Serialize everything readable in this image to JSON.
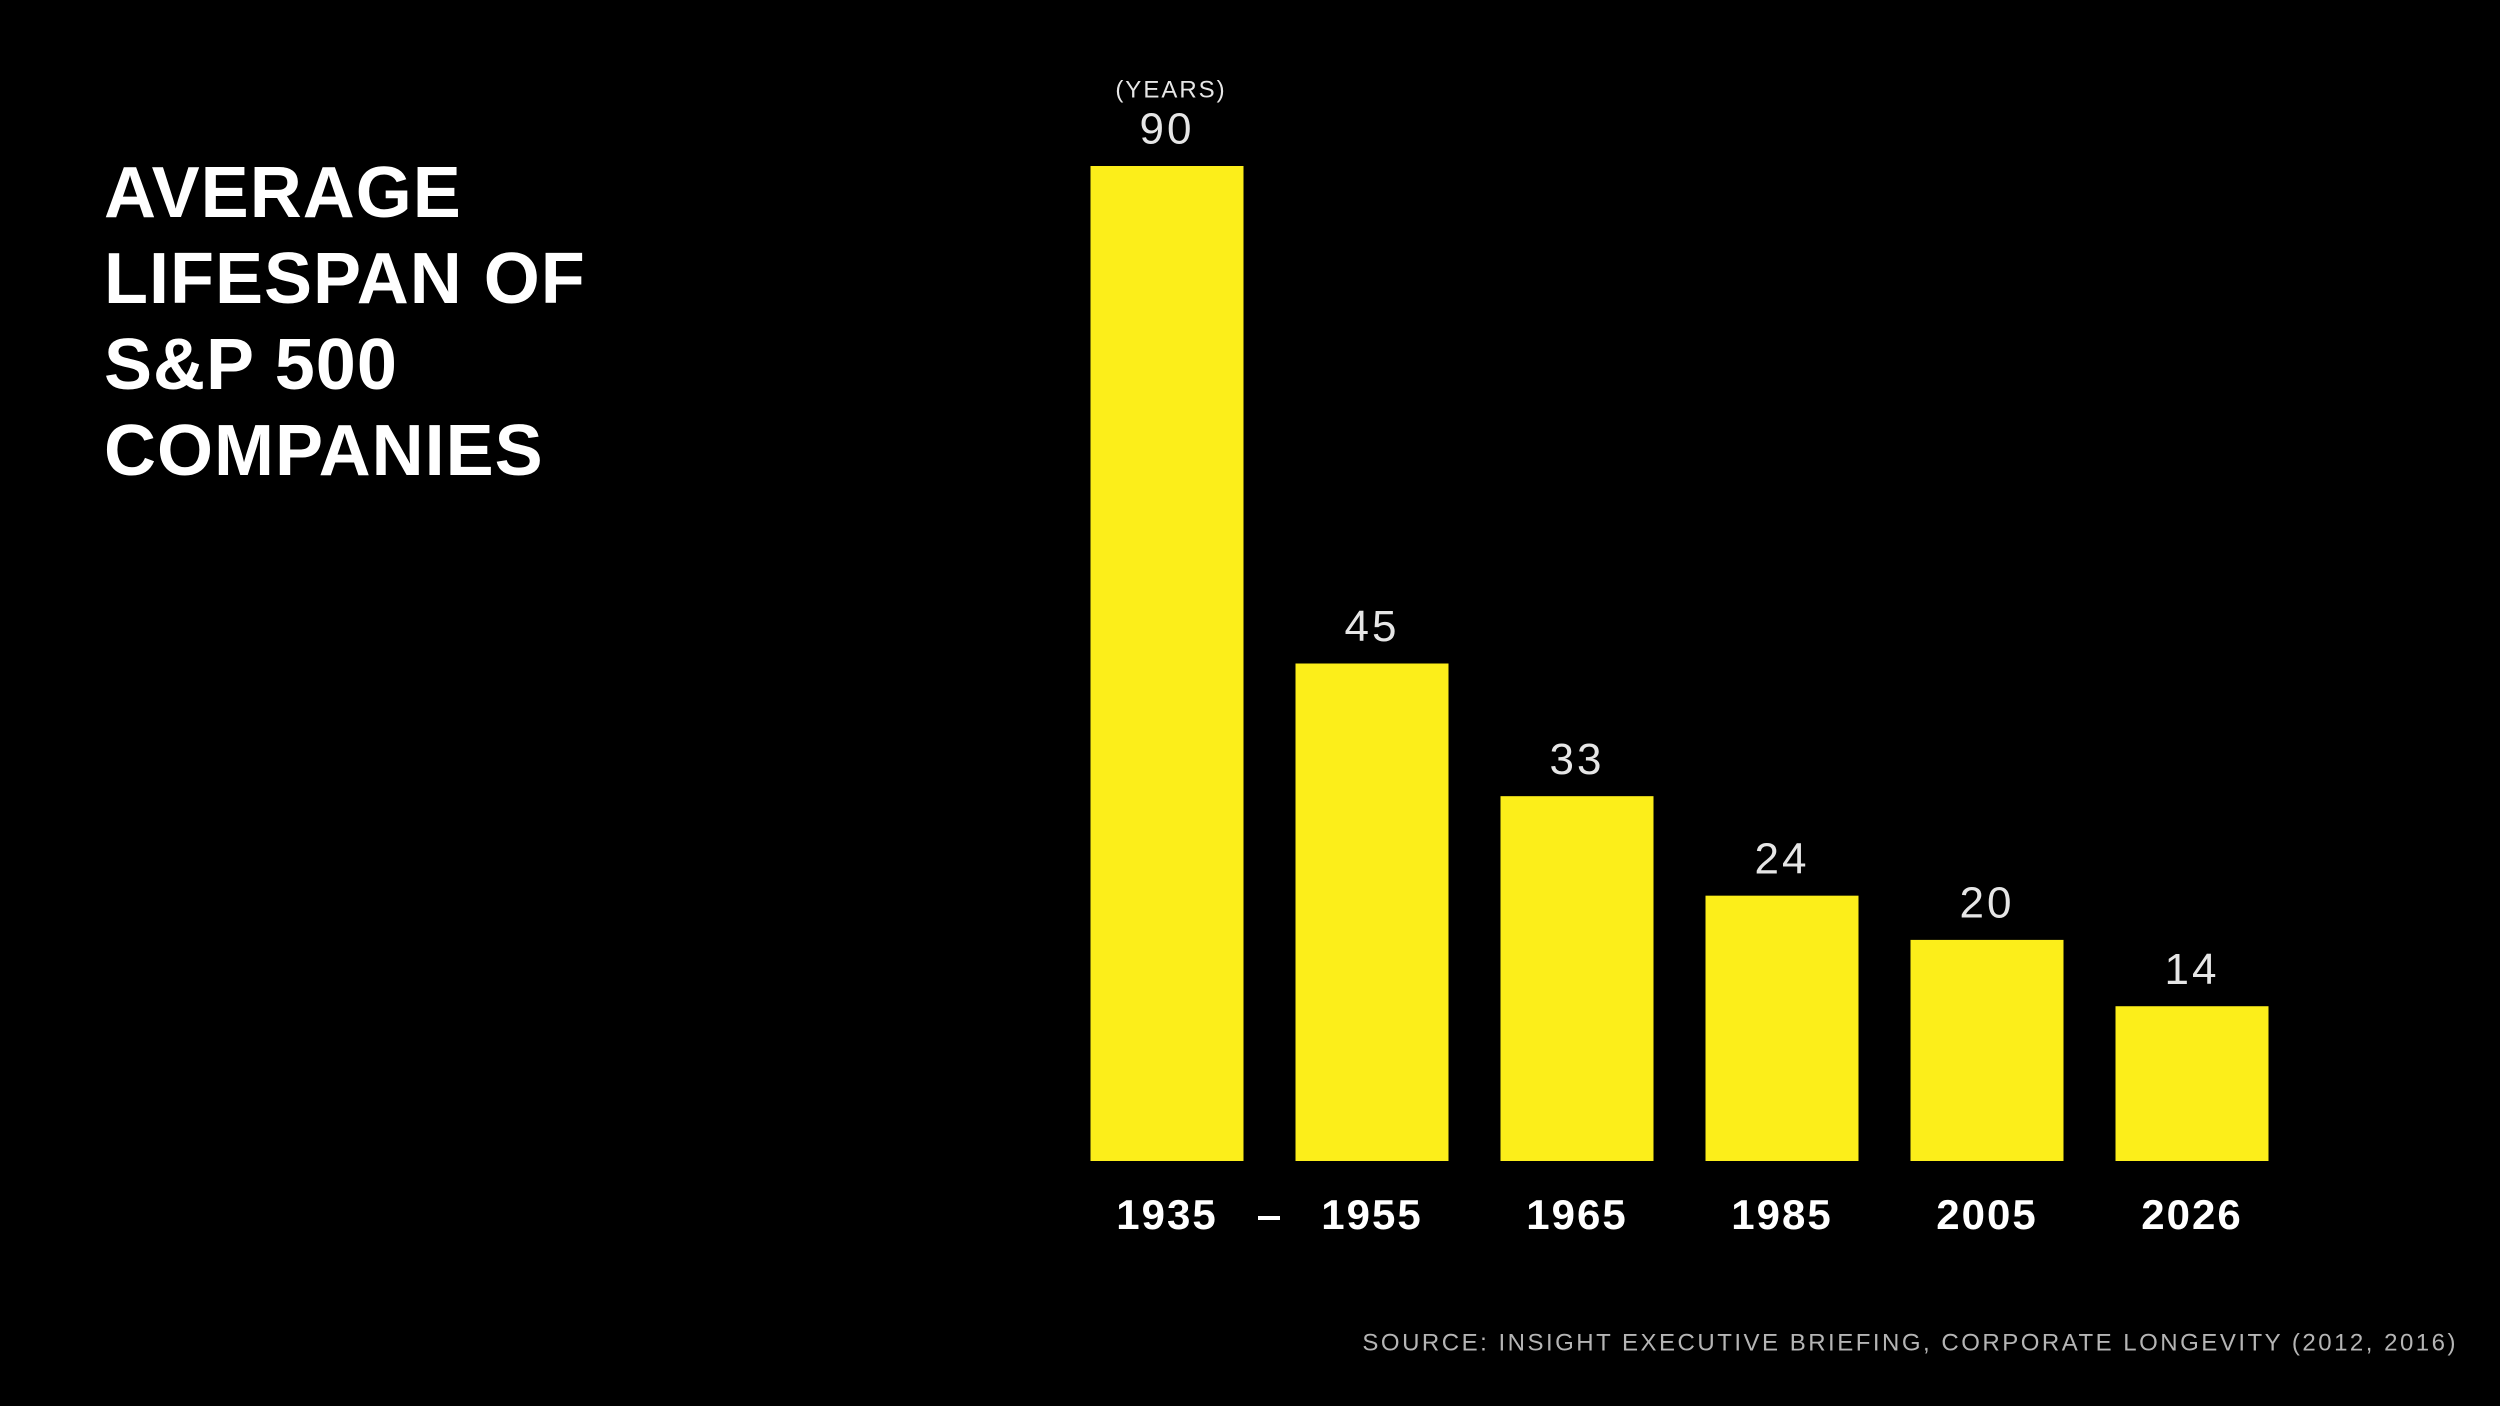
{
  "chart_data": {
    "type": "bar",
    "title": "AVERAGE LIFESPAN OF S&P 500 COMPANIES",
    "unit_label": "(YEARS)",
    "categories": [
      "1935",
      "1955",
      "1965",
      "1985",
      "2005",
      "2026"
    ],
    "values": [
      90,
      45,
      33,
      24,
      20,
      14
    ],
    "color": "#fcee1a",
    "source": "SOURCE: INSIGHT EXECUTIVE BRIEFING, CORPORATE LONGEVITY (2012, 2016)"
  }
}
